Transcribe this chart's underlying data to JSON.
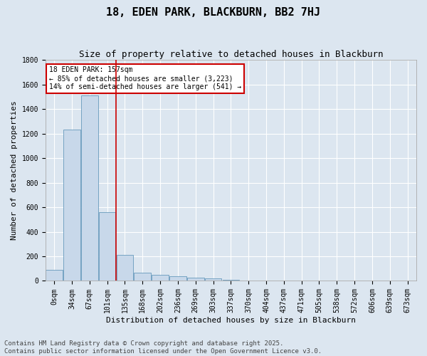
{
  "title": "18, EDEN PARK, BLACKBURN, BB2 7HJ",
  "subtitle": "Size of property relative to detached houses in Blackburn",
  "xlabel": "Distribution of detached houses by size in Blackburn",
  "ylabel": "Number of detached properties",
  "categories": [
    "0sqm",
    "34sqm",
    "67sqm",
    "101sqm",
    "135sqm",
    "168sqm",
    "202sqm",
    "236sqm",
    "269sqm",
    "303sqm",
    "337sqm",
    "370sqm",
    "404sqm",
    "437sqm",
    "471sqm",
    "505sqm",
    "538sqm",
    "572sqm",
    "606sqm",
    "639sqm",
    "673sqm"
  ],
  "values": [
    90,
    1230,
    1510,
    560,
    210,
    65,
    47,
    37,
    27,
    20,
    10,
    5,
    3,
    2,
    0,
    0,
    0,
    0,
    0,
    0,
    0
  ],
  "bar_color": "#c8d8ea",
  "bar_edge_color": "#6699bb",
  "background_color": "#dce6f0",
  "grid_color": "#ffffff",
  "annotation_line1": "18 EDEN PARK: 157sqm",
  "annotation_line2": "← 85% of detached houses are smaller (3,223)",
  "annotation_line3": "14% of semi-detached houses are larger (541) →",
  "annotation_box_color": "#cc0000",
  "vline_color": "#cc0000",
  "vline_position": 3.5,
  "ylim": [
    0,
    1800
  ],
  "yticks": [
    0,
    200,
    400,
    600,
    800,
    1000,
    1200,
    1400,
    1600,
    1800
  ],
  "footer_line1": "Contains HM Land Registry data © Crown copyright and database right 2025.",
  "footer_line2": "Contains public sector information licensed under the Open Government Licence v3.0.",
  "title_fontsize": 11,
  "subtitle_fontsize": 9,
  "axis_label_fontsize": 8,
  "tick_fontsize": 7,
  "annotation_fontsize": 7,
  "footer_fontsize": 6.5
}
